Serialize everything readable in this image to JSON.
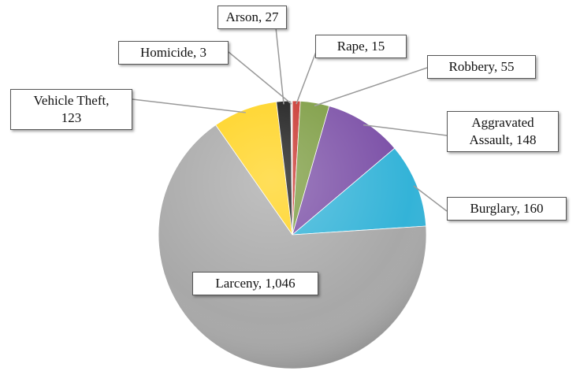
{
  "chart_data": {
    "type": "pie",
    "labels": [
      "Rape, 15",
      "Robbery, 55",
      "Aggravated\nAssault, 148",
      "Burglary, 160",
      "Larceny, 1,046",
      "Vehicle Theft,\n123",
      "Arson, 27",
      "Homicide, 3"
    ],
    "values": [
      15,
      55,
      148,
      160,
      1046,
      123,
      27,
      3
    ],
    "colors": [
      "#c8322b",
      "#7a9a3e",
      "#7a4ea6",
      "#33b3d8",
      "#a8a8a8",
      "#ffd21a",
      "#141414",
      "#d9d9d9"
    ]
  }
}
